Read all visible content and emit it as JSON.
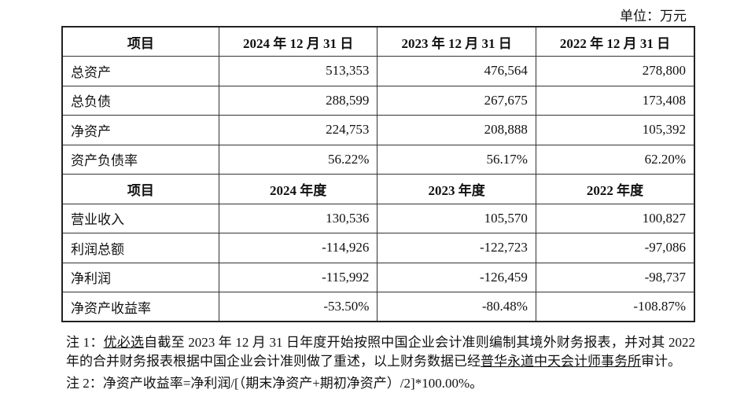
{
  "unit": "单位：万元",
  "table": {
    "sections": [
      {
        "header": [
          "项目",
          "2024 年 12 月 31 日",
          "2023 年 12 月 31 日",
          "2022 年 12 月 31 日"
        ],
        "rows": [
          [
            "总资产",
            "513,353",
            "476,564",
            "278,800"
          ],
          [
            "总负债",
            "288,599",
            "267,675",
            "173,408"
          ],
          [
            "净资产",
            "224,753",
            "208,888",
            "105,392"
          ],
          [
            "资产负债率",
            "56.22%",
            "56.17%",
            "62.20%"
          ]
        ]
      },
      {
        "header": [
          "项目",
          "2024 年度",
          "2023 年度",
          "2022 年度"
        ],
        "rows": [
          [
            "营业收入",
            "130,536",
            "105,570",
            "100,827"
          ],
          [
            "利润总额",
            "-114,926",
            "-122,723",
            "-97,086"
          ],
          [
            "净利润",
            "-115,992",
            "-126,459",
            "-98,737"
          ],
          [
            "净资产收益率",
            "-53.50%",
            "-80.48%",
            "-108.87%"
          ]
        ]
      }
    ]
  },
  "notes": [
    {
      "segments": [
        {
          "text": "注 1：",
          "underline": false
        },
        {
          "text": "优必选",
          "underline": true
        },
        {
          "text": "自截至 2023 年 12 月 31 日年度开始按照中国企业会计准则编制其境外财务报表，并对其 2022 年的合并财务报表根据中国企业会计准则做了重述，以上财务数据已经",
          "underline": false
        },
        {
          "text": "普华永道中天会计师事务所",
          "underline": true
        },
        {
          "text": "审计。",
          "underline": false
        }
      ]
    },
    {
      "segments": [
        {
          "text": "注 2：净资产收益率=净利润/[（期末净资产+期初净资产）/2]*100.00%。",
          "underline": false
        }
      ]
    }
  ]
}
